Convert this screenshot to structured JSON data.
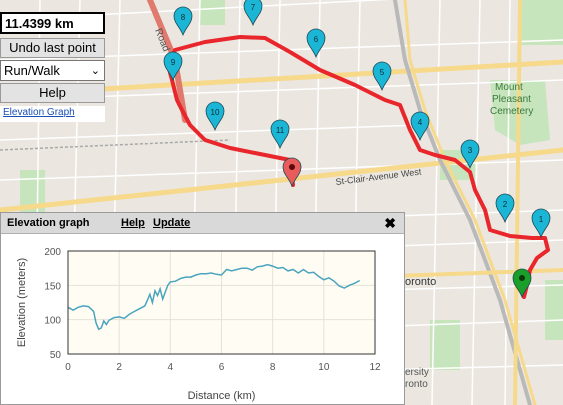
{
  "route": {
    "distance": "11.4399 km",
    "undo_label": "Undo last point",
    "mode": "Run/Walk",
    "help_label": "Help",
    "elevation_link": "Elevation Graph"
  },
  "map_labels": {
    "road": "Road",
    "st_clair": "St-Clair-Avenue West",
    "cemetery_1": "Mount",
    "cemetery_2": "Pleasant",
    "cemetery_3": "Cemetery",
    "toronto": "oronto",
    "university_1": "ersity",
    "university_2": "ronto"
  },
  "markers": [
    "1",
    "2",
    "3",
    "4",
    "5",
    "6",
    "7",
    "8",
    "9",
    "10",
    "11"
  ],
  "elevation_panel": {
    "title": "Elevation graph",
    "help": "Help",
    "update": "Update",
    "close": "✖"
  },
  "colors": {
    "route": "#e8262c",
    "marker": "#1bb6d6",
    "start_marker": "#1aa02a",
    "end_marker": "#e85c5c",
    "chart_line": "#4aa3bf",
    "chart_bg": "#fffdf3"
  },
  "chart_data": {
    "type": "line",
    "title": "",
    "xlabel": "Distance (km)",
    "ylabel": "Elevation (meters)",
    "xlim": [
      0,
      12
    ],
    "ylim": [
      50,
      200
    ],
    "xticks": [
      0,
      2,
      4,
      6,
      8,
      10,
      12
    ],
    "yticks": [
      50,
      100,
      150,
      200
    ],
    "grid": true,
    "series": [
      {
        "x": [
          0,
          0.2,
          0.4,
          0.6,
          0.8,
          1.0,
          1.1,
          1.2,
          1.3,
          1.4,
          1.5,
          1.6,
          1.8,
          2.0,
          2.2,
          2.4,
          2.6,
          2.8,
          3.0,
          3.1,
          3.2,
          3.3,
          3.4,
          3.5,
          3.6,
          3.7,
          3.8,
          3.9,
          4.0,
          4.2,
          4.4,
          4.6,
          4.8,
          5.0,
          5.2,
          5.4,
          5.6,
          5.8,
          6.0,
          6.2,
          6.4,
          6.6,
          6.8,
          7.0,
          7.2,
          7.4,
          7.6,
          7.8,
          8.0,
          8.2,
          8.4,
          8.6,
          8.8,
          9.0,
          9.2,
          9.4,
          9.6,
          9.8,
          10.0,
          10.2,
          10.4,
          10.6,
          10.8,
          11.0,
          11.2,
          11.4
        ],
        "y": [
          118,
          114,
          118,
          120,
          119,
          112,
          95,
          86,
          88,
          98,
          93,
          99,
          103,
          104,
          102,
          108,
          112,
          116,
          120,
          128,
          137,
          125,
          142,
          135,
          145,
          130,
          140,
          150,
          155,
          156,
          160,
          162,
          162,
          165,
          167,
          167,
          168,
          166,
          165,
          173,
          171,
          173,
          175,
          175,
          172,
          177,
          178,
          180,
          178,
          175,
          176,
          171,
          173,
          168,
          173,
          168,
          169,
          163,
          158,
          161,
          156,
          149,
          146,
          150,
          153,
          157
        ]
      }
    ]
  }
}
